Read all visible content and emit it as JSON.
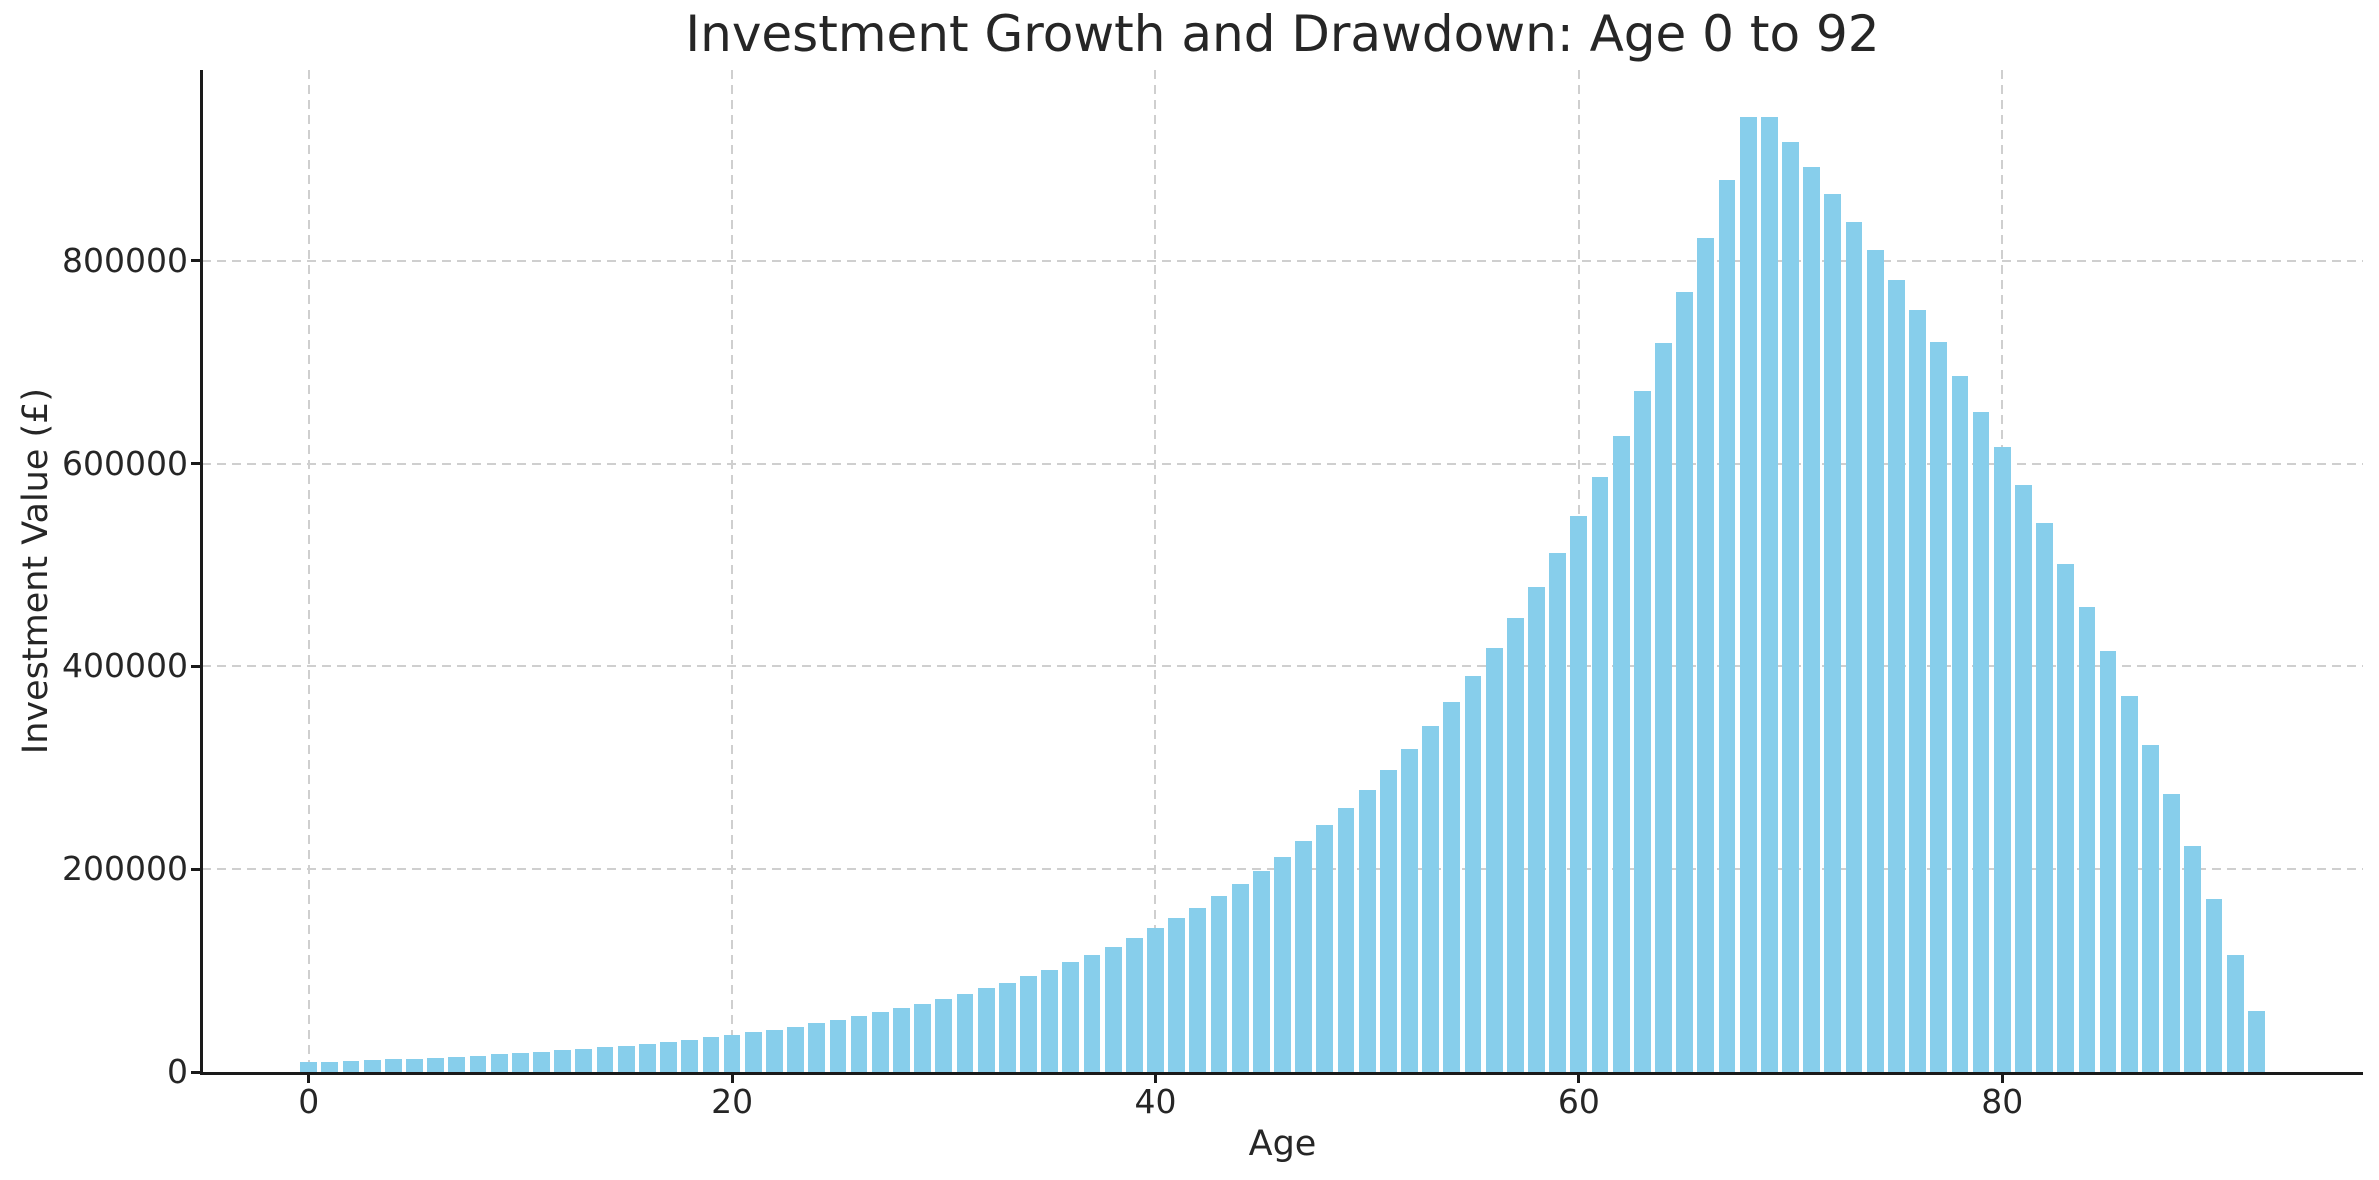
{
  "figure": {
    "title": "Investment Growth and Drawdown: Age 0 to 92",
    "xlabel": "Age",
    "ylabel": "Investment Value (£)"
  },
  "chart_data": {
    "type": "bar",
    "title": "Investment Growth and Drawdown: Age 0 to 92",
    "xlabel": "Age",
    "ylabel": "Investment Value (£)",
    "x": [
      0,
      1,
      2,
      3,
      4,
      5,
      6,
      7,
      8,
      9,
      10,
      11,
      12,
      13,
      14,
      15,
      16,
      17,
      18,
      19,
      20,
      21,
      22,
      23,
      24,
      25,
      26,
      27,
      28,
      29,
      30,
      31,
      32,
      33,
      34,
      35,
      36,
      37,
      38,
      39,
      40,
      41,
      42,
      43,
      44,
      45,
      46,
      47,
      48,
      49,
      50,
      51,
      52,
      53,
      54,
      55,
      56,
      57,
      58,
      59,
      60,
      61,
      62,
      63,
      64,
      65,
      66,
      67,
      68,
      69,
      70,
      71,
      72,
      73,
      74,
      75,
      76,
      77,
      78,
      79,
      80,
      81,
      82,
      83,
      84,
      85,
      86,
      87,
      88,
      89,
      90,
      91,
      92
    ],
    "values": [
      9500,
      10100,
      10800,
      11600,
      12400,
      13300,
      14200,
      15200,
      16300,
      17400,
      18600,
      19900,
      21300,
      22800,
      24400,
      26100,
      27900,
      29900,
      32000,
      34200,
      36600,
      39200,
      41900,
      44900,
      48000,
      51400,
      54900,
      58800,
      62900,
      67300,
      72000,
      77100,
      82500,
      88200,
      94400,
      101000,
      108100,
      115700,
      123800,
      132400,
      141700,
      151600,
      162200,
      173600,
      185700,
      198700,
      212600,
      227500,
      243400,
      260500,
      278700,
      298200,
      319100,
      341400,
      365300,
      390900,
      418300,
      447500,
      478900,
      512400,
      548300,
      586600,
      627700,
      671600,
      718700,
      769000,
      822800,
      880400,
      942000,
      942000,
      917000,
      892500,
      866000,
      839000,
      810500,
      781500,
      751500,
      720000,
      687000,
      651500,
      616500,
      579500,
      541500,
      501500,
      459000,
      415000,
      371000,
      323000,
      274500,
      223000,
      171000,
      115000,
      60500
    ],
    "x_ticks": [
      0,
      20,
      40,
      60,
      80
    ],
    "y_ticks": [
      0,
      200000,
      400000,
      600000,
      800000
    ],
    "xlim": [
      -5.04,
      97.04
    ],
    "ylim": [
      0,
      988400
    ],
    "bar_color": "#87CEEB",
    "bar_rel_width": 0.8,
    "grid_style": "dashed",
    "grid_color": "#cfcfcf",
    "axis_color": "#1a1a1a",
    "text_color": "#262626",
    "background_color": "#ffffff",
    "legend_position": "none"
  }
}
